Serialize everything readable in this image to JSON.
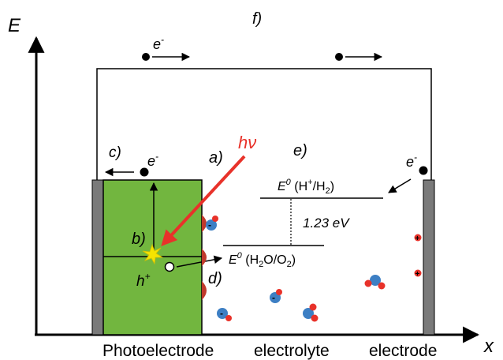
{
  "axes": {
    "y_label": "E",
    "x_label": "x"
  },
  "regions": {
    "photoelectrode": "Photoelectrode",
    "electrolyte": "electrolyte",
    "electrode": "electrode"
  },
  "step_labels": {
    "a": "a)",
    "b": "b)",
    "c": "c)",
    "d": "d)",
    "e": "e)",
    "f": "f)"
  },
  "photon_label": "hν",
  "carriers": {
    "electron": "e",
    "electron_sup": "-",
    "hole": "h",
    "hole_sup": "+"
  },
  "levels": {
    "h2_base": "E",
    "h2_sup": "0",
    "h2_text": " (H",
    "h2_plus": "+",
    "h2_slash": "/H",
    "h2_sub": "2",
    "h2_close": ")",
    "o2_base": "E",
    "o2_sup": "0",
    "o2_text": " (H",
    "o2_sub1": "2",
    "o2_mid": "O/O",
    "o2_sub2": "2",
    "o2_close": ")",
    "gap": "1.23 eV"
  },
  "ion_charge": {
    "plus": "+",
    "minus": "-"
  },
  "colors": {
    "photoelectrode_fill": "#72b63f",
    "contact_gray": "#7a7a7a",
    "photon_arrow": "#e8322a",
    "oxygen_red": "#e8322a",
    "hydrogen_blue": "#3d7fc4",
    "surface_red": "#c0392b",
    "spark_yellow": "#f5e400"
  }
}
